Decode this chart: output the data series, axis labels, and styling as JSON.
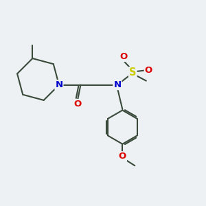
{
  "bg_color": "#edf1f4",
  "bond_color": "#3a4a3a",
  "bond_width": 1.5,
  "atom_colors": {
    "N": "#0000cc",
    "O": "#dd0000",
    "S": "#cccc00",
    "C": "#3a4a3a"
  },
  "font_size": 9.5
}
